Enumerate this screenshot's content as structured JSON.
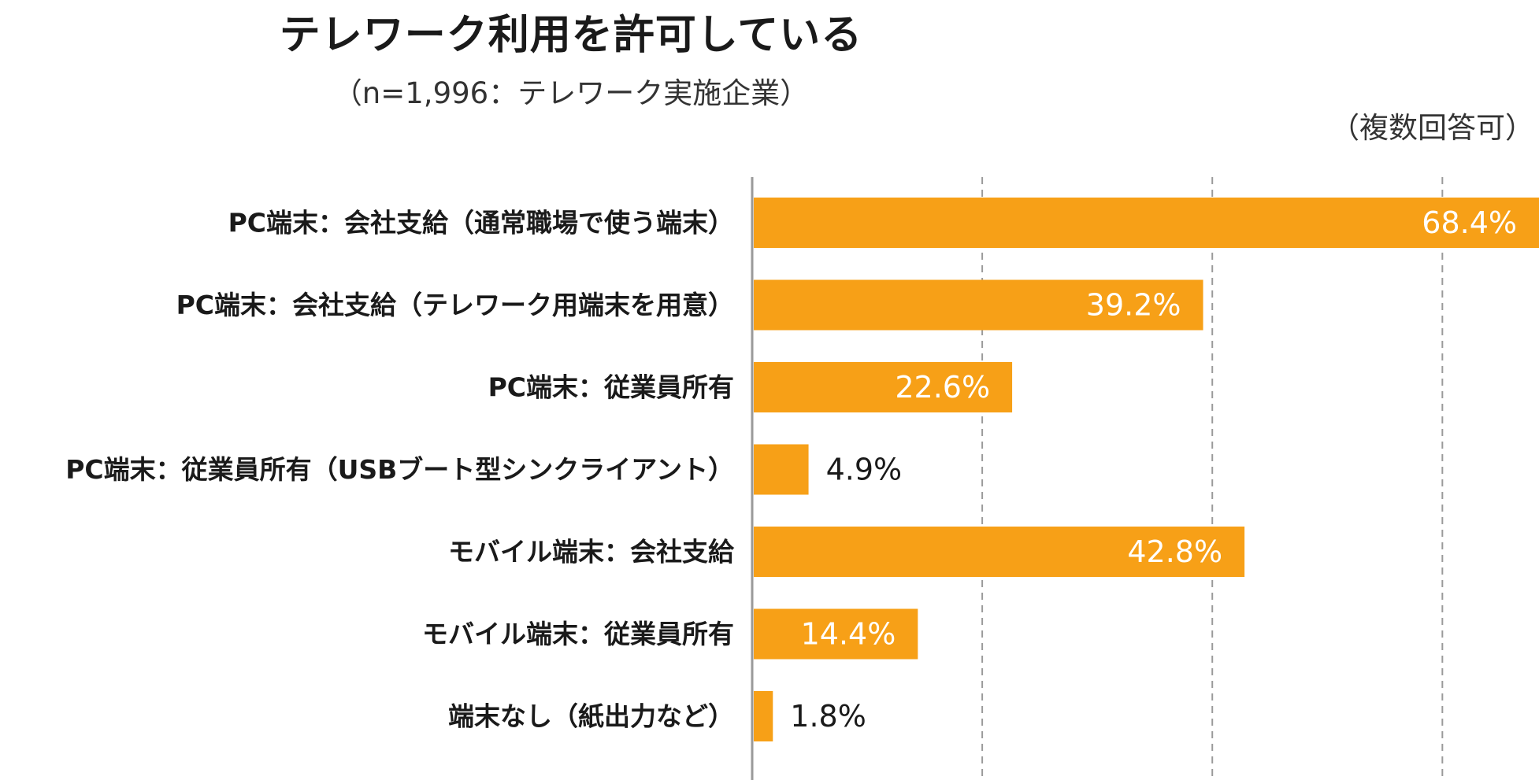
{
  "chart_data": {
    "type": "bar",
    "orientation": "horizontal",
    "title": "テレワーク利用を許可している",
    "subtitle": "（n=1,996：テレワーク実施企業）",
    "note": "（複数回答可）",
    "categories": [
      "PC端末：会社支給（通常職場で使う端末）",
      "PC端末：会社支給（テレワーク用端末を用意）",
      "PC端末：従業員所有",
      "PC端末：従業員所有（USBブート型シンクライアント）",
      "モバイル端末：会社支給",
      "モバイル端末：従業員所有",
      "端末なし（紙出力など）"
    ],
    "values": [
      68.4,
      39.2,
      22.6,
      4.9,
      42.8,
      14.4,
      1.8
    ],
    "value_labels": [
      "68.4%",
      "39.2%",
      "22.6%",
      "4.9%",
      "42.8%",
      "14.4%",
      "1.8%"
    ],
    "xlim": [
      0,
      68.4
    ],
    "gridlines": [
      20,
      40,
      60
    ],
    "grid": true,
    "bar_color": "#F7A017",
    "label_inside_color": "#ffffff",
    "label_outside_color": "#1a1a1a"
  }
}
